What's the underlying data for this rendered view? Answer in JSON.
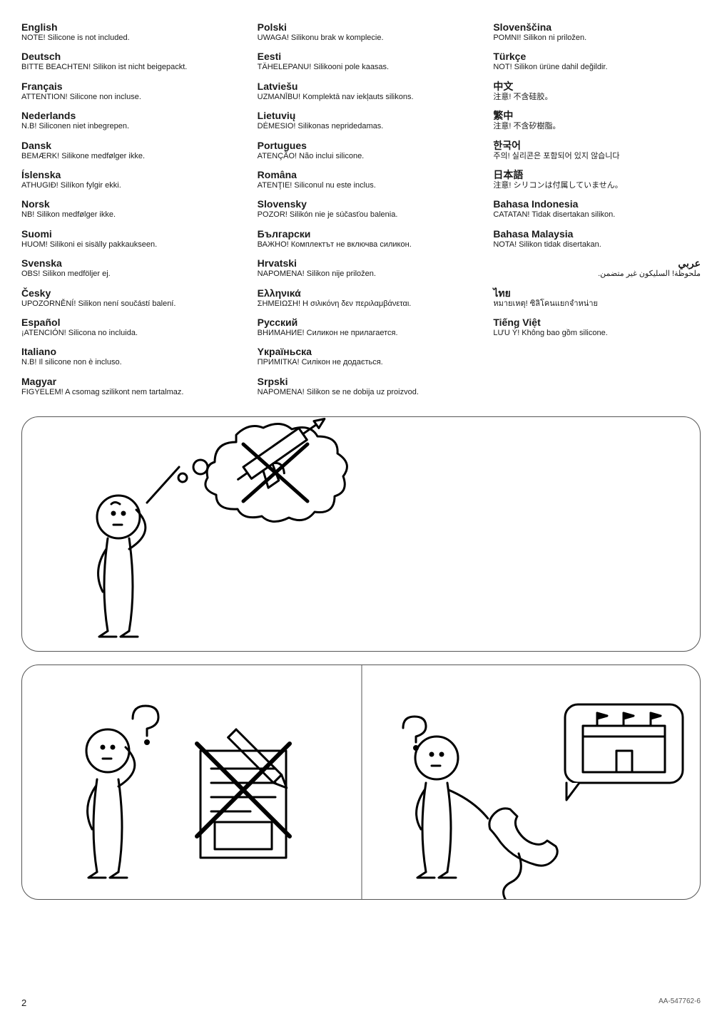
{
  "columns": [
    [
      {
        "lang": "English",
        "note": "NOTE! Silicone is not included."
      },
      {
        "lang": "Deutsch",
        "note": "BITTE BEACHTEN! Silikon ist nicht beigepackt."
      },
      {
        "lang": "Français",
        "note": "ATTENTION! Silicone non incluse."
      },
      {
        "lang": "Nederlands",
        "note": "N.B! Siliconen niet inbegrepen."
      },
      {
        "lang": "Dansk",
        "note": "BEMÆRK! Silikone medfølger ikke."
      },
      {
        "lang": "Íslenska",
        "note": "ATHUGIÐ! Silíkon fylgir ekki."
      },
      {
        "lang": "Norsk",
        "note": "NB! Silikon medfølger ikke."
      },
      {
        "lang": "Suomi",
        "note": "HUOM! Silikoni ei sisälly pakkaukseen."
      },
      {
        "lang": "Svenska",
        "note": "OBS! Silikon medföljer ej."
      },
      {
        "lang": "Česky",
        "note": "UPOZORNĚNÍ! Silikon není součástí balení."
      },
      {
        "lang": "Español",
        "note": "¡ATENCIÓN! Silicona no incluida."
      },
      {
        "lang": "Italiano",
        "note": "N.B! Il silicone non è incluso."
      },
      {
        "lang": "Magyar",
        "note": "FIGYELEM! A csomag szilikont nem tartalmaz."
      }
    ],
    [
      {
        "lang": "Polski",
        "note": "UWAGA! Silikonu brak w komplecie."
      },
      {
        "lang": "Eesti",
        "note": "TÄHELEPANU! Silikooni pole kaasas."
      },
      {
        "lang": "Latviešu",
        "note": "UZMANĪBU! Komplektā nav iekļauts silikons."
      },
      {
        "lang": "Lietuvių",
        "note": "DĖMESIO! Silikonas nepridedamas."
      },
      {
        "lang": "Portugues",
        "note": "ATENÇÃO! Não inclui silicone."
      },
      {
        "lang": "Româna",
        "note": "ATENŢIE! Siliconul nu este inclus."
      },
      {
        "lang": "Slovensky",
        "note": "POZOR! Silikón nie je súčasťou balenia."
      },
      {
        "lang": "Български",
        "note": "ВАЖНО! Комплектът не включва силикон."
      },
      {
        "lang": "Hrvatski",
        "note": "NAPOMENA! Silikon nije priložen."
      },
      {
        "lang": "Ελληνικά",
        "note": "ΣΗΜΕΙΩΣΗ! Η σιλικόνη δεν περιλαμβάνεται."
      },
      {
        "lang": "Русский",
        "note": "ВНИМАНИЕ! Силикон не прилагается."
      },
      {
        "lang": "Yкраїньска",
        "note": "ПРИМІТКА! Силікон не додається."
      },
      {
        "lang": "Srpski",
        "note": "NAPOMENA! Silikon se ne dobija uz proizvod."
      }
    ],
    [
      {
        "lang": "Slovenščina",
        "note": "POMNI! Silikon ni priložen."
      },
      {
        "lang": "Türkçe",
        "note": "NOT! Silikon ürüne dahil değildir."
      },
      {
        "lang": "中文",
        "note": "注意! 不含硅胶。"
      },
      {
        "lang": "繁中",
        "note": "注意! 不含矽樹脂。"
      },
      {
        "lang": "한국어",
        "note": "주의! 실리콘은 포함되어 있지 않습니다"
      },
      {
        "lang": "日本語",
        "note": "注意! シリコンは付属していません。"
      },
      {
        "lang": "Bahasa Indonesia",
        "note": "CATATAN! Tidak disertakan silikon."
      },
      {
        "lang": "Bahasa Malaysia",
        "note": "NOTA! Silikon tidak disertakan."
      },
      {
        "lang": "عربي",
        "note": "ملحوظة! السليكون غير متضمن.",
        "rtl": true
      },
      {
        "lang": "ไทย",
        "note": "หมายเหตุ! ซิลิโคนแยกจำหน่าย"
      },
      {
        "lang": "Tiếng Việt",
        "note": "LƯU Ý! Không bao gồm silicone."
      }
    ]
  ],
  "footer": {
    "page": "2",
    "doc_id": "AA-547762-6"
  },
  "fig": {
    "stroke": "#000000",
    "fg": "#1a1a1a",
    "box_stroke": "#555555",
    "box_radius": 24
  }
}
